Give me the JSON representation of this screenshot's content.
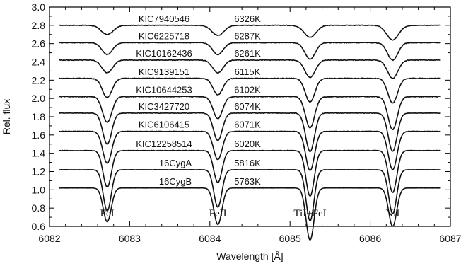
{
  "chart_data": {
    "type": "line",
    "xlabel": "Wavelength [Å]",
    "ylabel": "Rel. flux",
    "xlim": [
      6082,
      6087
    ],
    "ylim": [
      0.6,
      3.0
    ],
    "grid": false,
    "x_ticks": [
      "6082",
      "6083",
      "6084",
      "6085",
      "6086",
      "6087"
    ],
    "y_ticks": [
      "0.6",
      "0.8",
      "1.0",
      "1.2",
      "1.4",
      "1.6",
      "1.8",
      "2.0",
      "2.2",
      "2.4",
      "2.6",
      "2.8",
      "3.0"
    ],
    "line_labels": [
      {
        "label": "FeI",
        "x": 6082.72
      },
      {
        "label": "FeII",
        "x": 6084.1
      },
      {
        "label": "TiI+FeI",
        "x": 6085.25
      },
      {
        "label": "NiI",
        "x": 6086.28
      }
    ],
    "series": [
      {
        "name": "KIC7940546",
        "teff": "6326K",
        "continuum": 2.8,
        "depths": [
          0.1,
          0.11,
          0.13,
          0.16
        ],
        "widths": [
          0.075,
          0.075,
          0.075,
          0.075
        ],
        "noise": 0.006
      },
      {
        "name": "KIC6225718",
        "teff": "6287K",
        "continuum": 2.61,
        "depths": [
          0.13,
          0.13,
          0.18,
          0.19
        ],
        "widths": [
          0.065,
          0.065,
          0.065,
          0.065
        ],
        "noise": 0.006
      },
      {
        "name": "KIC10162436",
        "teff": "6261K",
        "continuum": 2.42,
        "depths": [
          0.14,
          0.14,
          0.19,
          0.2
        ],
        "widths": [
          0.065,
          0.065,
          0.065,
          0.065
        ],
        "noise": 0.007
      },
      {
        "name": "KIC9139151",
        "teff": "6115K",
        "continuum": 2.22,
        "depths": [
          0.21,
          0.18,
          0.26,
          0.27
        ],
        "widths": [
          0.06,
          0.06,
          0.06,
          0.06
        ],
        "noise": 0.007
      },
      {
        "name": "KIC10644253",
        "teff": "6102K",
        "continuum": 2.02,
        "depths": [
          0.28,
          0.24,
          0.34,
          0.36
        ],
        "widths": [
          0.058,
          0.058,
          0.058,
          0.058
        ],
        "noise": 0.008
      },
      {
        "name": "KIC3427720",
        "teff": "6074K",
        "continuum": 1.84,
        "depths": [
          0.34,
          0.3,
          0.42,
          0.42
        ],
        "widths": [
          0.055,
          0.055,
          0.055,
          0.055
        ],
        "noise": 0.006
      },
      {
        "name": "KIC6106415",
        "teff": "6071K",
        "continuum": 1.64,
        "depths": [
          0.35,
          0.31,
          0.43,
          0.42
        ],
        "widths": [
          0.055,
          0.055,
          0.055,
          0.055
        ],
        "noise": 0.005
      },
      {
        "name": "KIC12258514",
        "teff": "6020K",
        "continuum": 1.43,
        "depths": [
          0.4,
          0.35,
          0.5,
          0.46
        ],
        "widths": [
          0.052,
          0.052,
          0.052,
          0.052
        ],
        "noise": 0.005
      },
      {
        "name": "16CygA",
        "teff": "5816K",
        "continuum": 1.22,
        "depths": [
          0.45,
          0.41,
          0.56,
          0.48
        ],
        "widths": [
          0.05,
          0.05,
          0.05,
          0.05
        ],
        "noise": 0.002
      },
      {
        "name": "16CygB",
        "teff": "5763K",
        "continuum": 1.02,
        "depths": [
          0.37,
          0.4,
          0.57,
          0.42
        ],
        "widths": [
          0.05,
          0.05,
          0.05,
          0.05
        ],
        "noise": 0.002
      }
    ]
  }
}
